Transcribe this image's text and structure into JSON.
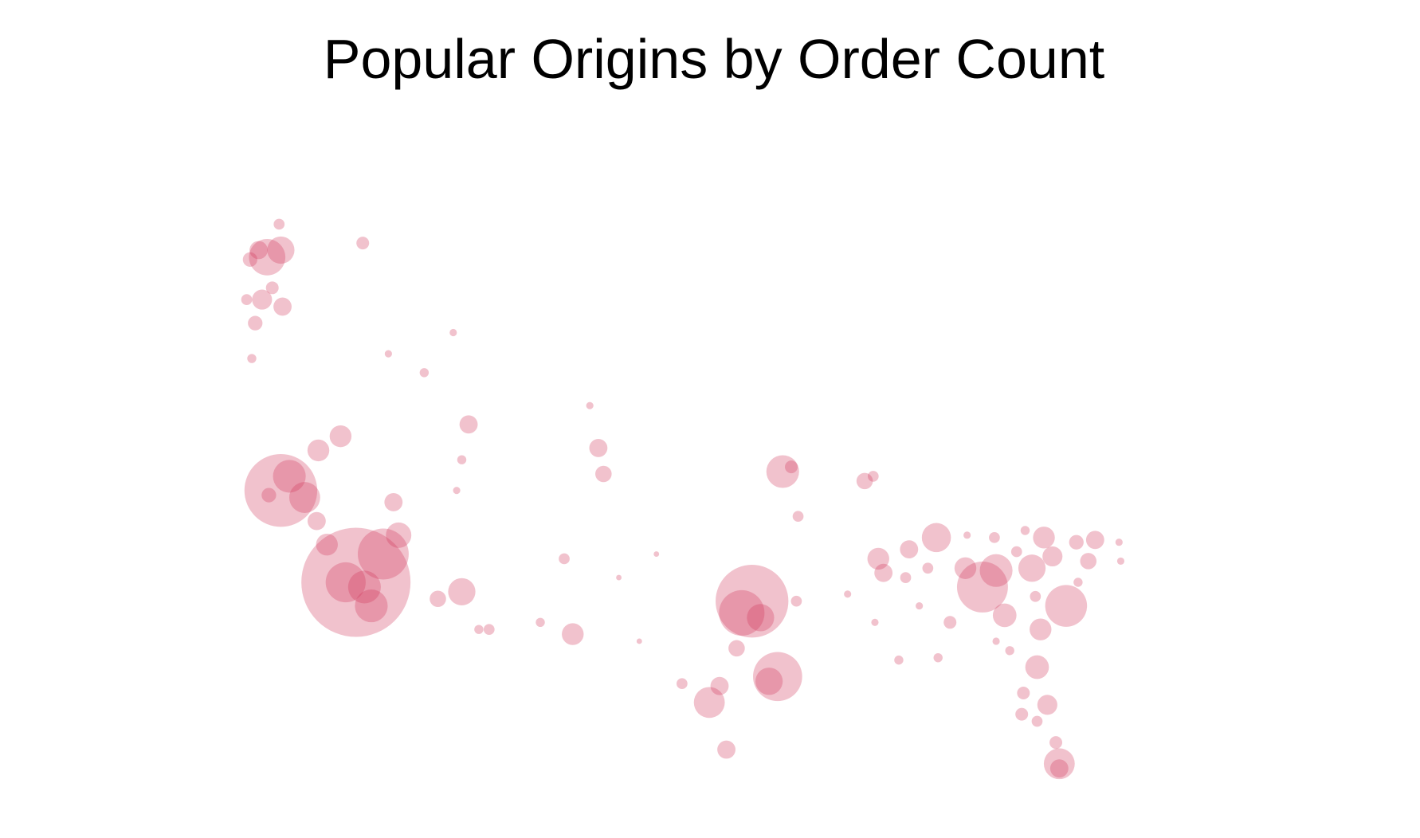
{
  "chart_data": {
    "type": "bubble-map",
    "title": "Popular Origins by Order Count",
    "color": "#d1345b",
    "alpha": 0.3,
    "xlim": [
      -125,
      -66
    ],
    "ylim": [
      24,
      50
    ],
    "x": [
      -116.8,
      -117.4,
      -116.3,
      -115.2,
      -115.9,
      -118.5,
      -114.3,
      -119.1,
      -121.2,
      -120.7,
      -119.8,
      -121.9,
      -119.0,
      -117.7,
      -114.6,
      -122.0,
      -121.2,
      -122.5,
      -121.3,
      -123.0,
      -122.3,
      -121.1,
      -122.7,
      -121.7,
      -123.2,
      -122.9,
      -116.4,
      -110.6,
      -112.0,
      -110.2,
      -104.1,
      -106.0,
      -109.6,
      -109.0,
      -102.6,
      -102.3,
      -103.1,
      -104.6,
      -93.6,
      -94.2,
      -93.1,
      -92.1,
      -92.6,
      -96.1,
      -95.1,
      -94.5,
      -95.5,
      -97.7,
      -91.8,
      -91.3,
      -87.0,
      -86.5,
      -82.8,
      -84.4,
      -86.2,
      -85.9,
      -90.9,
      -91.0,
      -80.1,
      -79.3,
      -78.8,
      -77.2,
      -76.5,
      -76.0,
      -75.2,
      -74.6,
      -73.5,
      -73.9,
      -81.1,
      -82.0,
      -76.9,
      -76.7,
      -76.3,
      -77.7,
      -77.8,
      -76.9,
      -75.6,
      -75.8,
      -75.6,
      -112.8,
      -114.9,
      -111.1,
      -110.6,
      -110.9,
      -101.4,
      -100.2,
      -99.2,
      -88.0,
      -86.4,
      -83.8,
      -82.7,
      -85.0,
      -81.0,
      -79.3,
      -78.5,
      -72.1,
      -72.0,
      -74.5,
      -77.0,
      -79.4,
      -77.6,
      -78.1,
      -83.3,
      -84.6
    ],
    "y": [
      33.5,
      33.5,
      33.3,
      34.7,
      32.5,
      35.1,
      35.5,
      36.1,
      37.4,
      38.0,
      37.1,
      37.2,
      39.1,
      39.7,
      36.9,
      47.3,
      47.6,
      47.6,
      48.7,
      47.2,
      45.5,
      45.2,
      44.5,
      46.0,
      45.5,
      43.0,
      47.9,
      33.1,
      32.8,
      40.2,
      31.3,
      31.8,
      31.5,
      31.5,
      39.2,
      38.1,
      41.0,
      34.5,
      32.7,
      32.2,
      32.0,
      29.5,
      29.3,
      28.4,
      26.4,
      30.7,
      29.1,
      29.2,
      38.2,
      38.4,
      37.8,
      38.0,
      35.4,
      34.9,
      34.5,
      33.9,
      36.3,
      32.7,
      33.3,
      34.0,
      32.1,
      34.1,
      35.4,
      34.6,
      32.5,
      35.2,
      35.3,
      34.4,
      34.1,
      31.8,
      29.9,
      31.5,
      28.3,
      28.8,
      27.9,
      27.6,
      25.8,
      26.7,
      25.6,
      42.4,
      43.2,
      44.1,
      38.7,
      37.4,
      33.7,
      31.0,
      34.7,
      33.0,
      31.8,
      32.5,
      30.3,
      30.2,
      35.5,
      31.0,
      30.6,
      35.2,
      34.4,
      33.5,
      32.9,
      35.4,
      35.7,
      34.8,
      34.1,
      33.7
    ],
    "sizes": [
      3600,
      484,
      324,
      784,
      324,
      144,
      196,
      100,
      1600,
      324,
      289,
      64,
      144,
      144,
      100,
      400,
      225,
      100,
      36,
      64,
      121,
      100,
      64,
      49,
      36,
      25,
      49,
      225,
      81,
      100,
      144,
      25,
      25,
      36,
      100,
      81,
      16,
      36,
      1600,
      625,
      225,
      729,
      225,
      289,
      100,
      81,
      100,
      36,
      324,
      49,
      81,
      36,
      256,
      100,
      144,
      100,
      36,
      36,
      784,
      324,
      169,
      225,
      144,
      121,
      529,
      64,
      100,
      81,
      144,
      49,
      169,
      144,
      121,
      49,
      49,
      36,
      289,
      49,
      100,
      25,
      16,
      16,
      25,
      16,
      9,
      9,
      9,
      16,
      16,
      16,
      25,
      25,
      16,
      16,
      25,
      16,
      16,
      25,
      36,
      36,
      25,
      36,
      36,
      36
    ]
  }
}
